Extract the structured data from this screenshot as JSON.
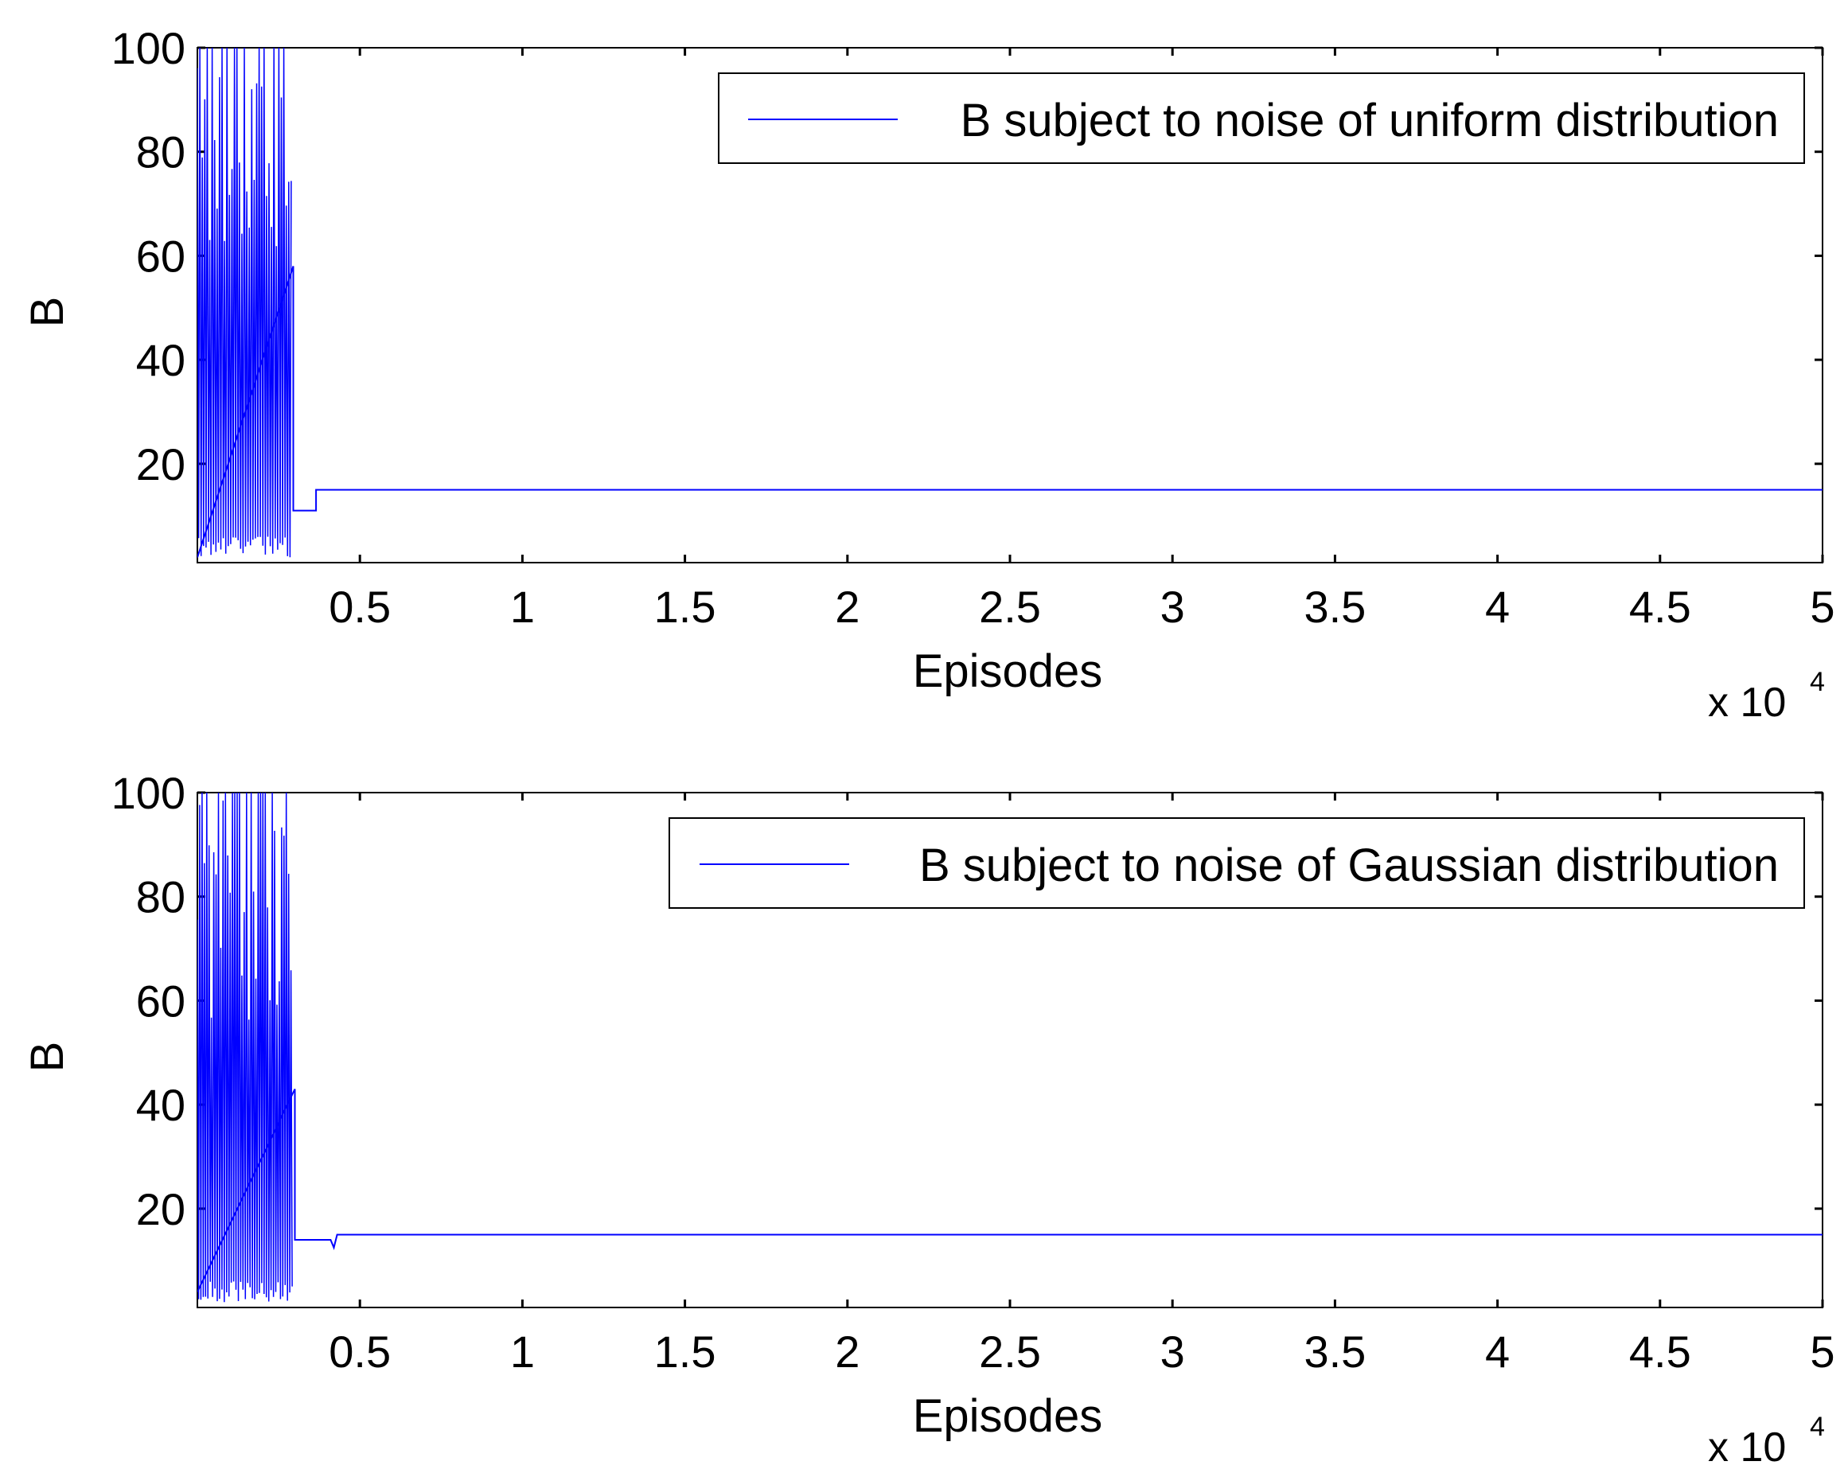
{
  "chart_data": [
    {
      "type": "line",
      "xlabel": "Episodes",
      "ylabel": "B",
      "x_multiplier": "x 10",
      "x_multiplier_exponent": "4",
      "xlim": [
        0,
        50000
      ],
      "ylim": [
        1,
        100
      ],
      "xticks": [
        5000,
        10000,
        15000,
        20000,
        25000,
        30000,
        35000,
        40000,
        45000,
        50000
      ],
      "xtick_labels": [
        "0.5",
        "1",
        "1.5",
        "2",
        "2.5",
        "3",
        "3.5",
        "4",
        "4.5",
        "5"
      ],
      "yticks": [
        20,
        40,
        60,
        80,
        100
      ],
      "ytick_labels": [
        "20",
        "40",
        "60",
        "80",
        "100"
      ],
      "grid": false,
      "legend_position": "top-right",
      "noise_region": {
        "x_end": 2900,
        "seed": 7,
        "period": 38
      },
      "series": [
        {
          "name": "B subject to noise of uniform distribution",
          "color": "#0000ff",
          "x": [
            0,
            2950,
            2950,
            3100,
            3200,
            3650,
            3650,
            50000
          ],
          "y": [
            2,
            58,
            11,
            11,
            11,
            11,
            15,
            15
          ]
        }
      ]
    },
    {
      "type": "line",
      "xlabel": "Episodes",
      "ylabel": "B",
      "x_multiplier": "x 10",
      "x_multiplier_exponent": "4",
      "xlim": [
        0,
        50000
      ],
      "ylim": [
        1,
        100
      ],
      "xticks": [
        5000,
        10000,
        15000,
        20000,
        25000,
        30000,
        35000,
        40000,
        45000,
        50000
      ],
      "xtick_labels": [
        "0.5",
        "1",
        "1.5",
        "2",
        "2.5",
        "3",
        "3.5",
        "4",
        "4.5",
        "5"
      ],
      "yticks": [
        20,
        40,
        60,
        80,
        100
      ],
      "ytick_labels": [
        "20",
        "40",
        "60",
        "80",
        "100"
      ],
      "grid": false,
      "legend_position": "top-right",
      "noise_region": {
        "x_end": 2950,
        "seed": 13,
        "period": 36
      },
      "series": [
        {
          "name": "B subject to noise of Gaussian distribution",
          "color": "#0000ff",
          "x": [
            0,
            3000,
            3000,
            4100,
            4200,
            4300,
            4300,
            50000
          ],
          "y": [
            4,
            43,
            14,
            14,
            12.5,
            15,
            15,
            15
          ]
        }
      ]
    }
  ]
}
